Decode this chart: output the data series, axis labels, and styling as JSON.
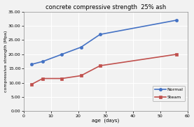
{
  "title": "concrete compressive strength  25% ash",
  "xlabel": "age  (days)",
  "ylabel": "compressive strength (Mpa)",
  "normal_x": [
    3,
    7,
    14,
    21,
    28,
    56
  ],
  "normal_y": [
    16.5,
    17.5,
    20.0,
    22.5,
    27.0,
    32.0
  ],
  "steam_x": [
    3,
    7,
    14,
    21,
    28,
    56
  ],
  "steam_y": [
    9.5,
    11.5,
    11.5,
    12.5,
    16.0,
    20.0
  ],
  "normal_color": "#4472C4",
  "steam_color": "#C0504D",
  "ylim": [
    0,
    35
  ],
  "xlim": [
    0,
    60
  ],
  "yticks": [
    0.0,
    5.0,
    10.0,
    15.0,
    20.0,
    25.0,
    30.0,
    35.0
  ],
  "xticks": [
    0,
    10,
    20,
    30,
    40,
    50,
    60
  ],
  "bg_color": "#F2F2F2",
  "plot_bg": "#F2F2F2",
  "grid_color": "#FFFFFF"
}
